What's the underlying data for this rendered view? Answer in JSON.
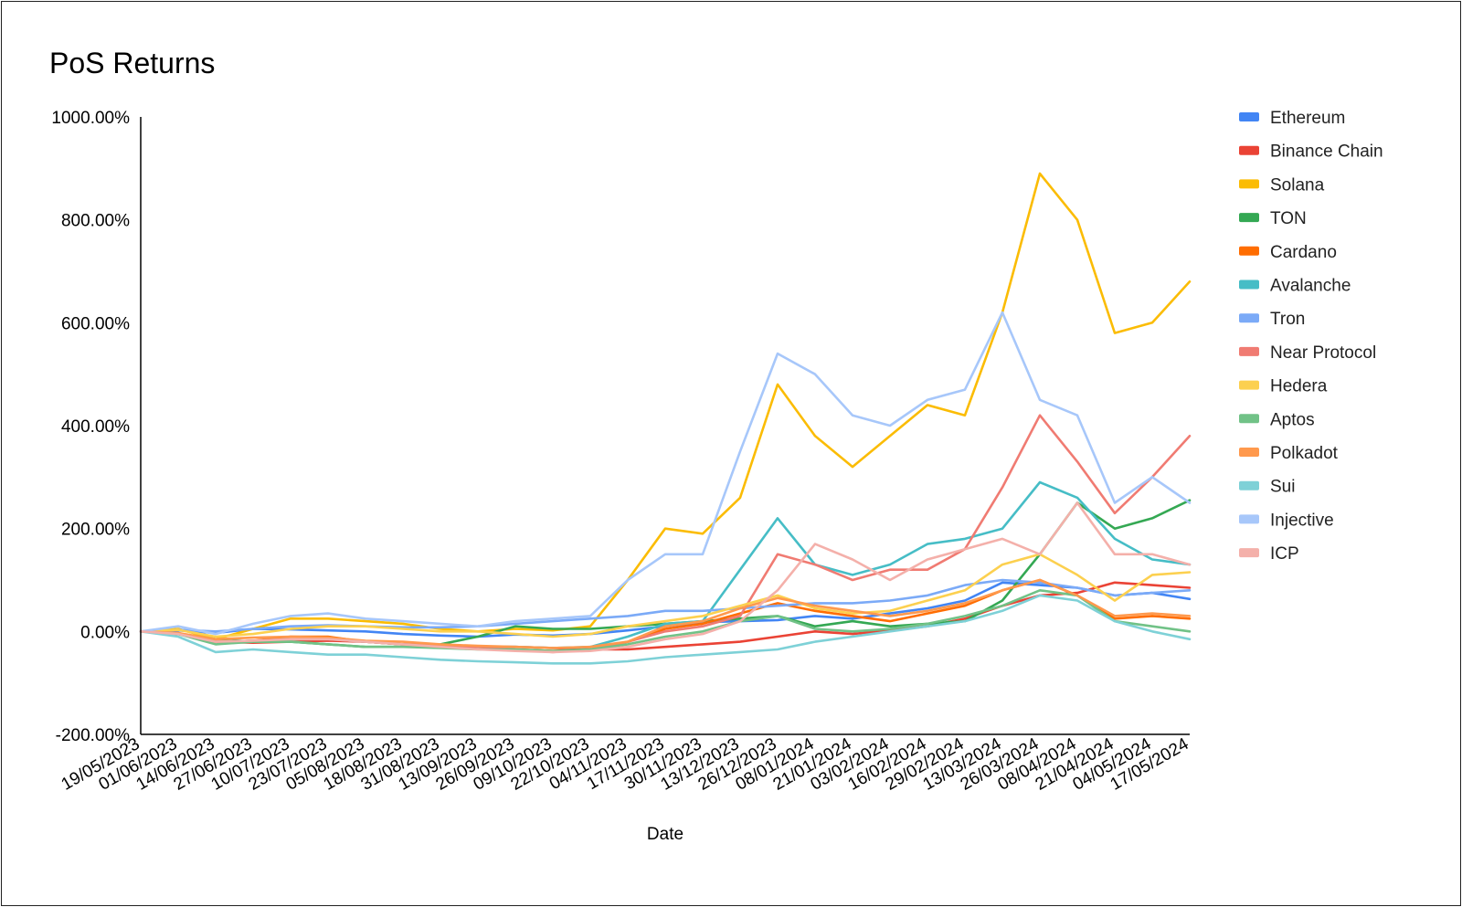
{
  "chart_data": {
    "type": "line",
    "title": "PoS Returns",
    "xlabel": "Date",
    "ylabel": "",
    "ylim": [
      -200,
      1000
    ],
    "y_ticks": [
      -200,
      0,
      200,
      400,
      600,
      800,
      1000
    ],
    "y_tick_labels": [
      "-200.00%",
      "0.00%",
      "200.00%",
      "400.00%",
      "600.00%",
      "800.00%",
      "1000.00%"
    ],
    "x_tick_labels": [
      "19/05/2023",
      "01/06/2023",
      "14/06/2023",
      "27/06/2023",
      "10/07/2023",
      "23/07/2023",
      "05/08/2023",
      "18/08/2023",
      "31/08/2023",
      "13/09/2023",
      "26/09/2023",
      "09/10/2023",
      "22/10/2023",
      "04/11/2023",
      "17/11/2023",
      "30/11/2023",
      "13/12/2023",
      "26/12/2023",
      "08/01/2024",
      "21/01/2024",
      "03/02/2024",
      "16/02/2024",
      "29/02/2024",
      "13/03/2024",
      "26/03/2024",
      "08/04/2024",
      "21/04/2024",
      "04/05/2024",
      "17/05/2024"
    ],
    "x": [
      "19/05/2023",
      "01/06/2023",
      "14/06/2023",
      "27/06/2023",
      "10/07/2023",
      "23/07/2023",
      "05/08/2023",
      "18/08/2023",
      "31/08/2023",
      "13/09/2023",
      "26/09/2023",
      "09/10/2023",
      "22/10/2023",
      "04/11/2023",
      "17/11/2023",
      "30/11/2023",
      "13/12/2023",
      "26/12/2023",
      "08/01/2024",
      "21/01/2024",
      "03/02/2024",
      "16/02/2024",
      "29/02/2024",
      "13/03/2024",
      "26/03/2024",
      "08/04/2024",
      "21/04/2024",
      "04/05/2024",
      "17/05/2024"
    ],
    "legend_position": "right",
    "grid": false,
    "series": [
      {
        "name": "Ethereum",
        "color": "#4285f4",
        "values": [
          0,
          2,
          -3,
          5,
          4,
          2,
          0,
          -5,
          -8,
          -10,
          -6,
          -8,
          -5,
          2,
          10,
          18,
          20,
          22,
          30,
          25,
          35,
          45,
          60,
          95,
          90,
          85,
          70,
          75,
          63
        ]
      },
      {
        "name": "Binance Chain",
        "color": "#ea4335",
        "values": [
          0,
          -5,
          -20,
          -22,
          -20,
          -18,
          -20,
          -25,
          -28,
          -30,
          -30,
          -32,
          -35,
          -35,
          -30,
          -25,
          -20,
          -10,
          0,
          -5,
          2,
          10,
          25,
          50,
          70,
          75,
          95,
          90,
          85
        ]
      },
      {
        "name": "Solana",
        "color": "#fbbc04",
        "values": [
          0,
          5,
          -15,
          5,
          25,
          25,
          20,
          15,
          5,
          0,
          5,
          2,
          10,
          100,
          200,
          190,
          260,
          480,
          380,
          320,
          380,
          440,
          420,
          620,
          890,
          800,
          580,
          600,
          680
        ]
      },
      {
        "name": "TON",
        "color": "#34a853",
        "values": [
          0,
          -5,
          -15,
          -20,
          -20,
          -25,
          -30,
          -30,
          -25,
          -10,
          10,
          5,
          5,
          10,
          15,
          20,
          25,
          30,
          10,
          20,
          10,
          15,
          20,
          60,
          150,
          250,
          200,
          220,
          255
        ]
      },
      {
        "name": "Cardano",
        "color": "#ff6d01",
        "values": [
          0,
          -3,
          -20,
          -18,
          -10,
          -10,
          -20,
          -25,
          -28,
          -30,
          -35,
          -38,
          -35,
          -20,
          5,
          15,
          35,
          55,
          40,
          30,
          20,
          35,
          50,
          80,
          100,
          70,
          25,
          30,
          25
        ]
      },
      {
        "name": "Avalanche",
        "color": "#46bdc6",
        "values": [
          0,
          -5,
          -20,
          -18,
          -15,
          -15,
          -20,
          -25,
          -28,
          -30,
          -30,
          -32,
          -30,
          -10,
          15,
          20,
          120,
          220,
          130,
          110,
          130,
          170,
          180,
          200,
          290,
          260,
          180,
          140,
          130
        ]
      },
      {
        "name": "Tron",
        "color": "#7baaf7",
        "values": [
          0,
          3,
          0,
          5,
          10,
          12,
          10,
          8,
          8,
          10,
          15,
          20,
          25,
          30,
          40,
          40,
          45,
          50,
          55,
          55,
          60,
          70,
          90,
          100,
          95,
          85,
          70,
          75,
          80
        ]
      },
      {
        "name": "Near Protocol",
        "color": "#f07b72",
        "values": [
          0,
          -5,
          -20,
          -18,
          -15,
          -15,
          -20,
          -25,
          -28,
          -30,
          -35,
          -40,
          -35,
          -20,
          0,
          10,
          30,
          150,
          130,
          100,
          120,
          120,
          160,
          280,
          420,
          330,
          230,
          300,
          380
        ]
      },
      {
        "name": "Hedera",
        "color": "#fcd04f",
        "values": [
          0,
          3,
          -10,
          -5,
          5,
          10,
          10,
          5,
          0,
          0,
          -5,
          -10,
          -5,
          10,
          20,
          30,
          50,
          70,
          45,
          35,
          40,
          60,
          80,
          130,
          150,
          110,
          60,
          110,
          115
        ]
      },
      {
        "name": "Aptos",
        "color": "#71c287",
        "values": [
          0,
          -5,
          -25,
          -20,
          -20,
          -25,
          -30,
          -30,
          -32,
          -35,
          -35,
          -38,
          -35,
          -25,
          -10,
          0,
          20,
          30,
          5,
          0,
          5,
          15,
          30,
          50,
          80,
          70,
          20,
          10,
          0
        ]
      },
      {
        "name": "Polkadot",
        "color": "#ff994d",
        "values": [
          0,
          -3,
          -15,
          -12,
          -10,
          -12,
          -18,
          -20,
          -25,
          -28,
          -30,
          -32,
          -30,
          -20,
          10,
          20,
          45,
          65,
          50,
          40,
          30,
          40,
          55,
          80,
          100,
          70,
          30,
          35,
          30
        ]
      },
      {
        "name": "Sui",
        "color": "#7ed1d7",
        "values": [
          0,
          -10,
          -40,
          -35,
          -40,
          -45,
          -45,
          -50,
          -55,
          -58,
          -60,
          -62,
          -62,
          -58,
          -50,
          -45,
          -40,
          -35,
          -20,
          -10,
          0,
          10,
          20,
          40,
          70,
          60,
          20,
          0,
          -15
        ]
      },
      {
        "name": "Injective",
        "color": "#a7c7fa",
        "values": [
          0,
          10,
          -5,
          15,
          30,
          35,
          25,
          20,
          15,
          10,
          20,
          25,
          30,
          100,
          150,
          150,
          350,
          540,
          500,
          420,
          400,
          450,
          470,
          620,
          450,
          420,
          250,
          300,
          250
        ]
      },
      {
        "name": "ICP",
        "color": "#f4b0aa",
        "values": [
          0,
          -5,
          -20,
          -18,
          -15,
          -15,
          -20,
          -25,
          -30,
          -35,
          -38,
          -40,
          -38,
          -30,
          -15,
          -5,
          20,
          80,
          170,
          140,
          100,
          140,
          160,
          180,
          150,
          250,
          150,
          150,
          130
        ]
      }
    ]
  }
}
